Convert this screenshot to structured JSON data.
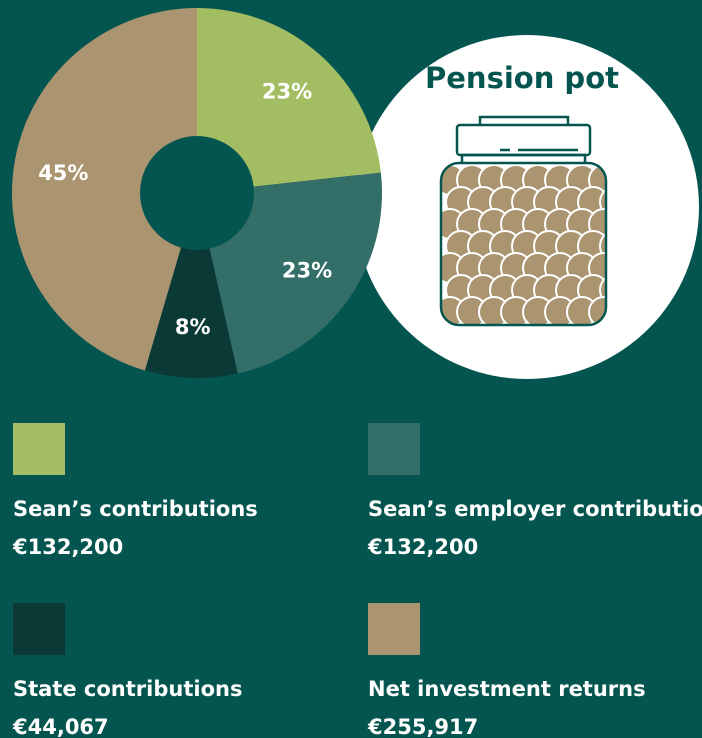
{
  "chart_data": {
    "type": "pie",
    "title": "Pension pot",
    "categories": [
      "Sean’s contributions",
      "Sean’s employer contributions",
      "State contributions",
      "Net investment returns"
    ],
    "values": [
      23,
      23,
      8,
      45
    ],
    "value_labels": [
      "23%",
      "23%",
      "8%",
      "45%"
    ],
    "amounts": [
      "€132,200",
      "€132,200",
      "€44,067",
      "€255,917"
    ],
    "colors": [
      "#a3bd62",
      "#336e69",
      "#0b3a36",
      "#ab9470"
    ],
    "donut": true
  }
}
